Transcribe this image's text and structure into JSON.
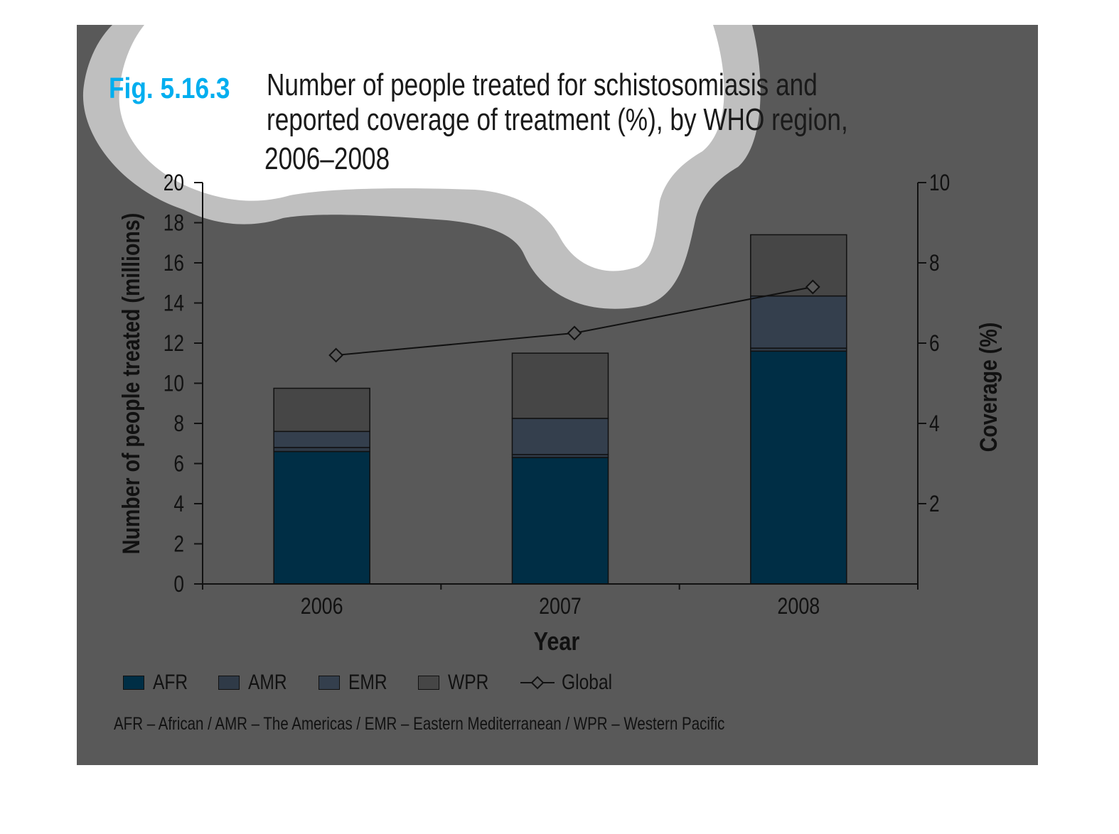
{
  "figure": {
    "number": "Fig. 5.16.3",
    "title_lines": [
      "Number of people treated for schistosomiasis and",
      "reported coverage of treatment (%), by WHO region,",
      "2006–2008"
    ]
  },
  "colors": {
    "background": "#595959",
    "cloud_fill": "#ffffff",
    "cloud_rim": "#bfbfbf",
    "fig_number": "#00aeef",
    "AFR": "#002e45",
    "AMR": "#2f3a47",
    "EMR": "#343f4d",
    "WPR": "#464646",
    "line": "#111111"
  },
  "chart_data": {
    "type": "bar",
    "stacked": true,
    "categories": [
      "2006",
      "2007",
      "2008"
    ],
    "xlabel": "Year",
    "ylabel": "Number of people treated (millions)",
    "ylabel_right": "Coverage (%)",
    "ylim": [
      0,
      20
    ],
    "ylim_right": [
      0,
      10
    ],
    "yticks": [
      0,
      2,
      4,
      6,
      8,
      10,
      12,
      14,
      16,
      18,
      20
    ],
    "yticks_right": [
      2,
      4,
      6,
      8,
      10
    ],
    "grid": false,
    "legend_position": "bottom",
    "series": [
      {
        "name": "AFR",
        "values": [
          6.6,
          6.3,
          11.6
        ]
      },
      {
        "name": "AMR",
        "values": [
          0.2,
          0.15,
          0.15
        ]
      },
      {
        "name": "EMR",
        "values": [
          0.8,
          1.8,
          2.6
        ]
      },
      {
        "name": "WPR",
        "values": [
          2.15,
          3.25,
          3.05
        ]
      }
    ],
    "line_series": {
      "name": "Global",
      "axis": "right",
      "values": [
        5.7,
        6.25,
        7.4
      ]
    }
  },
  "legend": {
    "items": [
      {
        "key": "AFR",
        "label": "AFR"
      },
      {
        "key": "AMR",
        "label": "AMR"
      },
      {
        "key": "EMR",
        "label": "EMR"
      },
      {
        "key": "WPR",
        "label": "WPR"
      }
    ],
    "line_label": "Global"
  },
  "footnote": "AFR – African / AMR – The Americas / EMR – Eastern Mediterranean / WPR – Western Pacific"
}
